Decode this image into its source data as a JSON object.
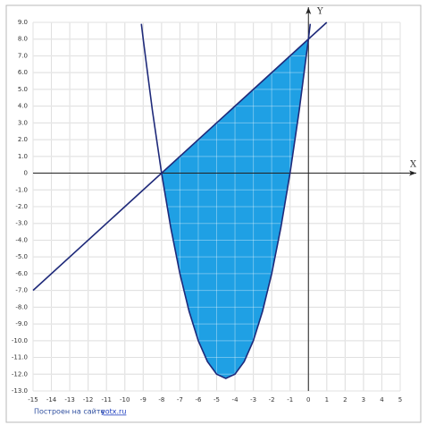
{
  "chart_data": {
    "type": "line",
    "xlabel": "X",
    "ylabel": "Y",
    "series": [
      {
        "color": "#1f2a7a",
        "x": [
          -15,
          1
        ],
        "values": [
          -7,
          9
        ]
      },
      {
        "color": "#1f2a7a",
        "x": [
          -9.1,
          -9,
          -8.5,
          -8,
          -7.5,
          -7,
          -6.5,
          -6,
          -5.5,
          -5,
          -4.5,
          -4,
          -3.5,
          -3,
          -2.5,
          -2,
          -1.5,
          -1,
          -0.5,
          0,
          0.1
        ],
        "values": [
          8.91,
          8,
          3.75,
          0,
          -3.25,
          -6,
          -8.25,
          -10,
          -11.25,
          -12,
          -12.25,
          -12,
          -11.25,
          -10,
          -8.25,
          -6,
          -3.25,
          0,
          3.75,
          8,
          8.91
        ]
      }
    ],
    "fill_color": "#1fa0e4",
    "xlim": [
      -15,
      5
    ],
    "ylim": [
      -13,
      9
    ],
    "xticks": [
      -15,
      -14,
      -13,
      -12,
      -11,
      -10,
      -9,
      -8,
      -7,
      -6,
      -5,
      -4,
      -3,
      -2,
      -1,
      0,
      1,
      2,
      3,
      4,
      5
    ],
    "yticks": [
      {
        "value": 9,
        "label": "9.0"
      },
      {
        "value": 8,
        "label": "8.0"
      },
      {
        "value": 7,
        "label": "7.0"
      },
      {
        "value": 6,
        "label": "6.0"
      },
      {
        "value": 5,
        "label": "5.0"
      },
      {
        "value": 4,
        "label": "4.0"
      },
      {
        "value": 3,
        "label": "3.0"
      },
      {
        "value": 2,
        "label": "2.0"
      },
      {
        "value": 1,
        "label": "1.0"
      },
      0,
      {
        "value": -1,
        "label": "-1.0"
      },
      {
        "value": -2,
        "label": "-2.0"
      },
      {
        "value": -3,
        "label": "-3.0"
      },
      {
        "value": -4,
        "label": "-4.0"
      },
      {
        "value": -5,
        "label": "-5.0"
      },
      {
        "value": -6,
        "label": "-6.0"
      },
      {
        "value": -7,
        "label": "-7.0"
      },
      {
        "value": -8,
        "label": "-8.0"
      },
      {
        "value": -9,
        "label": "-9.0"
      },
      {
        "value": -10,
        "label": "-10.0"
      },
      {
        "value": -11,
        "label": "-11.0"
      },
      {
        "value": -12,
        "label": "-12.0"
      },
      {
        "value": -13,
        "label": "-13.0"
      }
    ],
    "grid": true,
    "footer": "Построен на сайте",
    "footer_link": "yotx.ru"
  }
}
